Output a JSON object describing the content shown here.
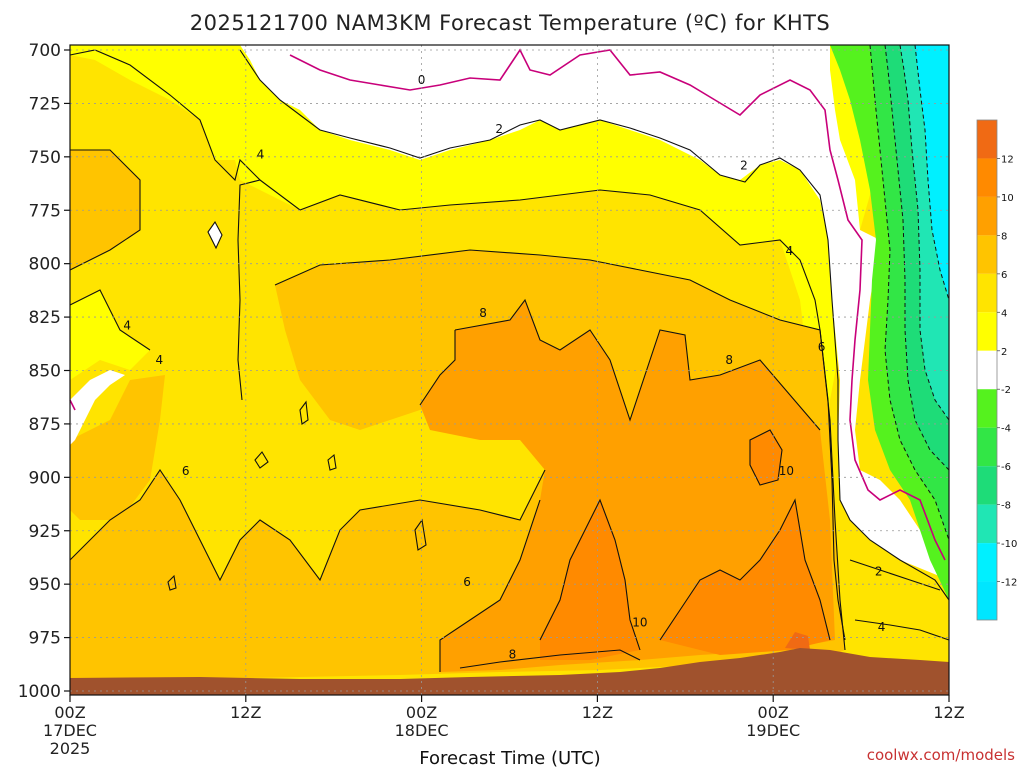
{
  "header": {
    "title": "2025121700 NAM3KM Forecast Temperature (ºC) for KHTS"
  },
  "footer": {
    "xlabel": "Forecast Time (UTC)",
    "credit": "coolwx.com/models"
  },
  "colors": {
    "c_lt_m2": "#00e6ff",
    "c_m12_m10": "#00f0ff",
    "c_m10_m8": "#20e6b4",
    "c_m8_m6": "#1edc78",
    "c_m6_m4": "#32e646",
    "c_m4_m2": "#55f21e",
    "c_m2_2": "#ffffff",
    "c_2_4": "#ffff00",
    "c_4_6": "#ffe400",
    "c_6_8": "#ffc400",
    "c_8_10": "#ffa000",
    "c_10_12": "#ff8a00",
    "c_gt_12": "#f06a14",
    "ground": "#a0522d",
    "freezing_line": "#c8007a",
    "grid": "#999999"
  },
  "chart_data": {
    "type": "heatmap",
    "title": "2025121700 NAM3KM Forecast Temperature (ºC) for KHTS",
    "xlabel": "Forecast Time (UTC)",
    "ylabel": "",
    "x_ticks": [
      {
        "label": "00Z",
        "sub": "17DEC",
        "sub2": "2025",
        "hour": 0
      },
      {
        "label": "12Z",
        "sub": "",
        "sub2": "",
        "hour": 12
      },
      {
        "label": "00Z",
        "sub": "18DEC",
        "sub2": "",
        "hour": 24
      },
      {
        "label": "12Z",
        "sub": "",
        "sub2": "",
        "hour": 36
      },
      {
        "label": "00Z",
        "sub": "19DEC",
        "sub2": "",
        "hour": 48
      },
      {
        "label": "12Z",
        "sub": "",
        "sub2": "",
        "hour": 60
      }
    ],
    "xlim_hours": [
      0,
      60
    ],
    "y_ticks": [
      "700",
      "725",
      "750",
      "775",
      "800",
      "825",
      "850",
      "875",
      "900",
      "925",
      "950",
      "975",
      "1000"
    ],
    "ylim_hpa": [
      700,
      1000
    ],
    "colorbar": {
      "labels": [
        "12",
        "10",
        "8",
        "6",
        "4",
        "2",
        "-2",
        "-4",
        "-6",
        "-8",
        "-10",
        "-12"
      ],
      "levels": [
        -12,
        -10,
        -8,
        -6,
        -4,
        -2,
        2,
        4,
        6,
        8,
        10,
        12
      ]
    },
    "contour_labels": [
      {
        "text": "0",
        "hour": 24.0,
        "hpa": 714
      },
      {
        "text": "2",
        "hour": 29.3,
        "hpa": 737
      },
      {
        "text": "2",
        "hour": 46.0,
        "hpa": 754
      },
      {
        "text": "4",
        "hour": 13.0,
        "hpa": 749
      },
      {
        "text": "4",
        "hour": 49.1,
        "hpa": 794
      },
      {
        "text": "4",
        "hour": 3.9,
        "hpa": 829
      },
      {
        "text": "4",
        "hour": 6.1,
        "hpa": 845
      },
      {
        "text": "6",
        "hour": 7.9,
        "hpa": 897
      },
      {
        "text": "6",
        "hour": 27.1,
        "hpa": 949
      },
      {
        "text": "6",
        "hour": 51.3,
        "hpa": 839
      },
      {
        "text": "8",
        "hour": 28.2,
        "hpa": 823
      },
      {
        "text": "8",
        "hour": 45.0,
        "hpa": 845
      },
      {
        "text": "8",
        "hour": 30.2,
        "hpa": 983
      },
      {
        "text": "10",
        "hour": 38.9,
        "hpa": 968
      },
      {
        "text": "10",
        "hour": 48.9,
        "hpa": 897
      },
      {
        "text": "2",
        "hour": 55.2,
        "hpa": 944
      },
      {
        "text": "4",
        "hour": 55.4,
        "hpa": 970
      }
    ],
    "grid": true,
    "legend": "right"
  }
}
